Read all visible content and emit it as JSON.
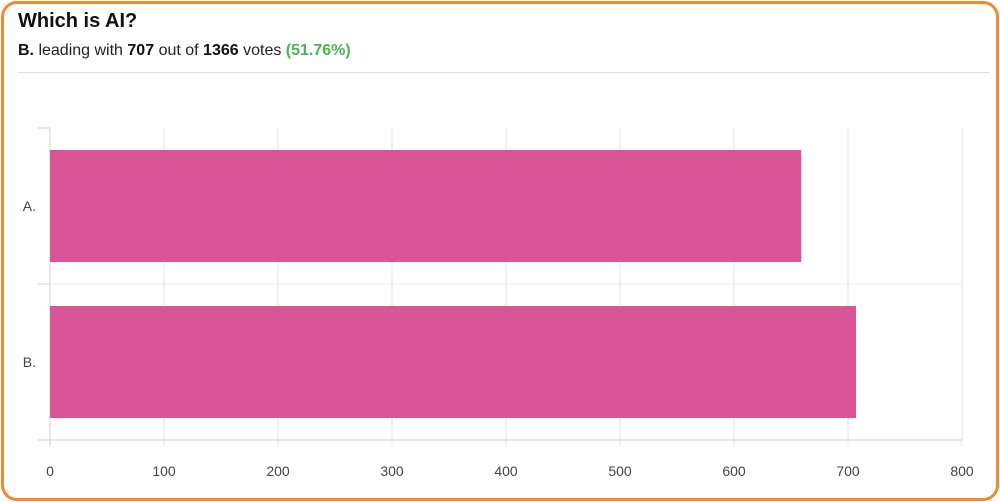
{
  "poll": {
    "title": "Which is AI?",
    "leader": "B.",
    "leading_text": "leading with",
    "leader_votes": "707",
    "out_of_text": "out of",
    "total_votes": "1366",
    "votes_text": "votes",
    "percent": "(51.76%)"
  },
  "colors": {
    "accent_border": "#f2892f",
    "bar": "#d95597",
    "percent": "#4cb35a"
  },
  "chart_data": {
    "type": "bar",
    "orientation": "horizontal",
    "categories": [
      "A.",
      "B."
    ],
    "values": [
      659,
      707
    ],
    "xlim": [
      0,
      800
    ],
    "xticks": [
      0,
      100,
      200,
      300,
      400,
      500,
      600,
      700,
      800
    ],
    "grid": true,
    "title": "",
    "xlabel": "",
    "ylabel": ""
  }
}
